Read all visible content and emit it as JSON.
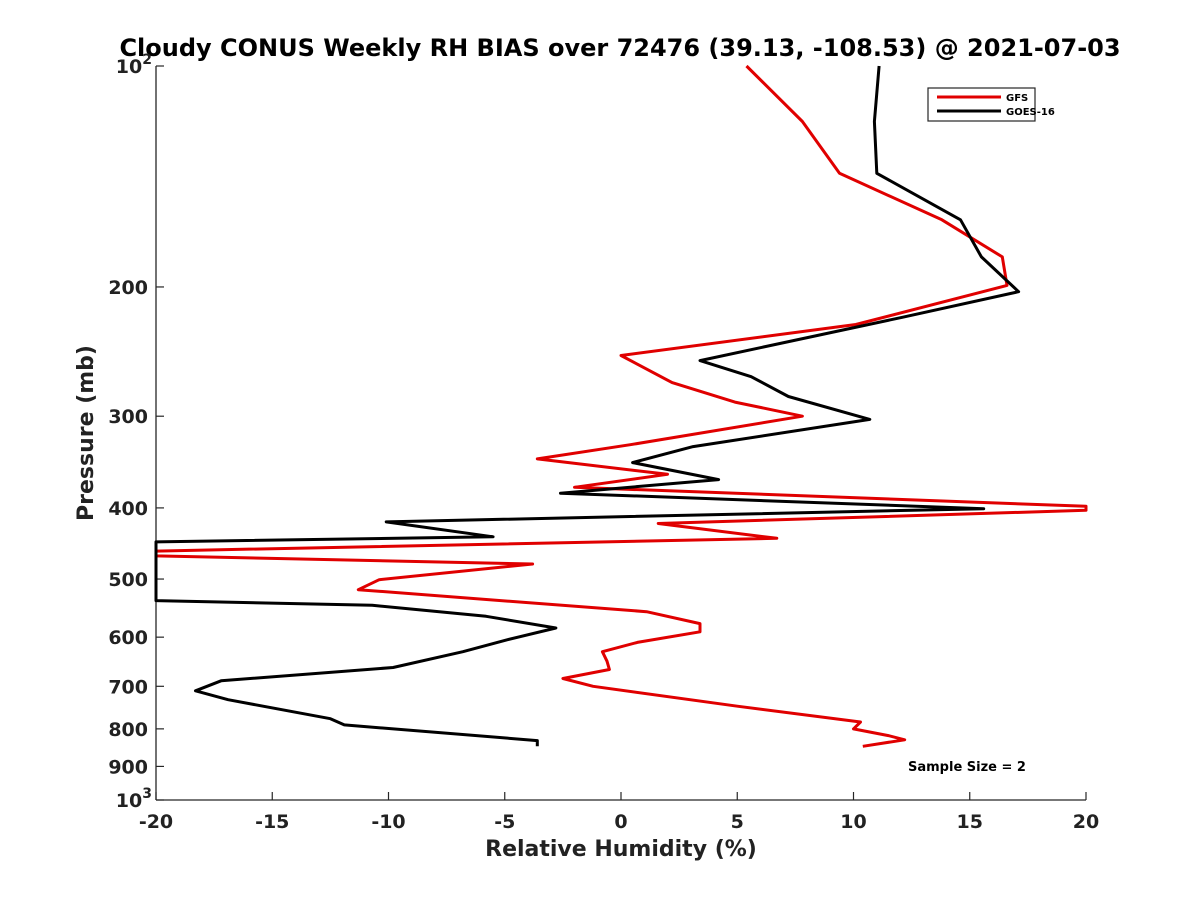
{
  "chart_data": {
    "type": "line",
    "title": "Cloudy CONUS Weekly RH BIAS over 72476 (39.13, -108.53) @ 2021-07-03",
    "xlabel": "Relative Humidity (%)",
    "ylabel": "Pressure (mb)",
    "xlim": [
      -20,
      20
    ],
    "ylim": [
      100,
      1000
    ],
    "yscale": "log",
    "y_reversed": true,
    "xticks": [
      -20,
      -15,
      -10,
      -5,
      0,
      5,
      10,
      15,
      20
    ],
    "xtick_labels": [
      "-20",
      "-15",
      "-10",
      "-5",
      "0",
      "5",
      "10",
      "15",
      "20"
    ],
    "yticks": [
      100,
      200,
      300,
      400,
      500,
      600,
      700,
      800,
      900,
      1000
    ],
    "ytick_labels": [
      {
        "base": "10",
        "exp": "2"
      },
      {
        "base": "200",
        "exp": ""
      },
      {
        "base": "300",
        "exp": ""
      },
      {
        "base": "400",
        "exp": ""
      },
      {
        "base": "500",
        "exp": ""
      },
      {
        "base": "600",
        "exp": ""
      },
      {
        "base": "700",
        "exp": ""
      },
      {
        "base": "800",
        "exp": ""
      },
      {
        "base": "900",
        "exp": ""
      },
      {
        "base": "10",
        "exp": "3"
      }
    ],
    "grid": false,
    "legend_position": "top-right",
    "annotation": "Sample Size = 2",
    "series": [
      {
        "name": "GFS",
        "color": "#e00000",
        "points": [
          [
            5.4,
            100
          ],
          [
            7.8,
            119
          ],
          [
            9.4,
            140
          ],
          [
            13.8,
            162
          ],
          [
            16.4,
            182
          ],
          [
            16.6,
            199
          ],
          [
            10.1,
            225
          ],
          [
            0.0,
            248
          ],
          [
            2.2,
            270
          ],
          [
            4.9,
            287
          ],
          [
            7.8,
            300
          ],
          [
            0.4,
            328
          ],
          [
            -3.6,
            343
          ],
          [
            2.0,
            360
          ],
          [
            -2.0,
            375
          ],
          [
            20.0,
            398
          ],
          [
            20.0,
            403
          ],
          [
            1.6,
            420
          ],
          [
            6.7,
            440
          ],
          [
            -20.0,
            458
          ],
          [
            -20.0,
            465
          ],
          [
            -3.8,
            477
          ],
          [
            -10.4,
            501
          ],
          [
            -11.3,
            517
          ],
          [
            1.1,
            554
          ],
          [
            3.4,
            575
          ],
          [
            3.4,
            590
          ],
          [
            0.7,
            610
          ],
          [
            -0.8,
            628
          ],
          [
            -0.6,
            647
          ],
          [
            -0.5,
            664
          ],
          [
            -2.5,
            683
          ],
          [
            -1.2,
            700
          ],
          [
            5.0,
            745
          ],
          [
            10.3,
            783
          ],
          [
            10.0,
            800
          ],
          [
            11.5,
            817
          ],
          [
            12.2,
            828
          ],
          [
            10.4,
            845
          ]
        ]
      },
      {
        "name": "GOES-16",
        "color": "#000000",
        "points": [
          [
            11.1,
            100
          ],
          [
            10.9,
            119
          ],
          [
            11.0,
            140
          ],
          [
            14.6,
            162
          ],
          [
            15.5,
            182
          ],
          [
            17.1,
            203
          ],
          [
            12.1,
            220
          ],
          [
            3.4,
            252
          ],
          [
            5.6,
            265
          ],
          [
            7.2,
            282
          ],
          [
            10.7,
            303
          ],
          [
            3.1,
            330
          ],
          [
            0.5,
            347
          ],
          [
            4.2,
            366
          ],
          [
            -2.6,
            382
          ],
          [
            15.6,
            401
          ],
          [
            -10.1,
            418
          ],
          [
            -5.5,
            438
          ],
          [
            -20.0,
            445
          ],
          [
            -20.0,
            535
          ],
          [
            -10.7,
            543
          ],
          [
            -5.8,
            562
          ],
          [
            -2.8,
            583
          ],
          [
            -4.9,
            605
          ],
          [
            -6.8,
            628
          ],
          [
            -9.8,
            660
          ],
          [
            -17.2,
            688
          ],
          [
            -18.3,
            710
          ],
          [
            -16.9,
            730
          ],
          [
            -12.5,
            775
          ],
          [
            -11.9,
            790
          ],
          [
            -3.6,
            830
          ],
          [
            -3.6,
            845
          ]
        ]
      }
    ]
  }
}
